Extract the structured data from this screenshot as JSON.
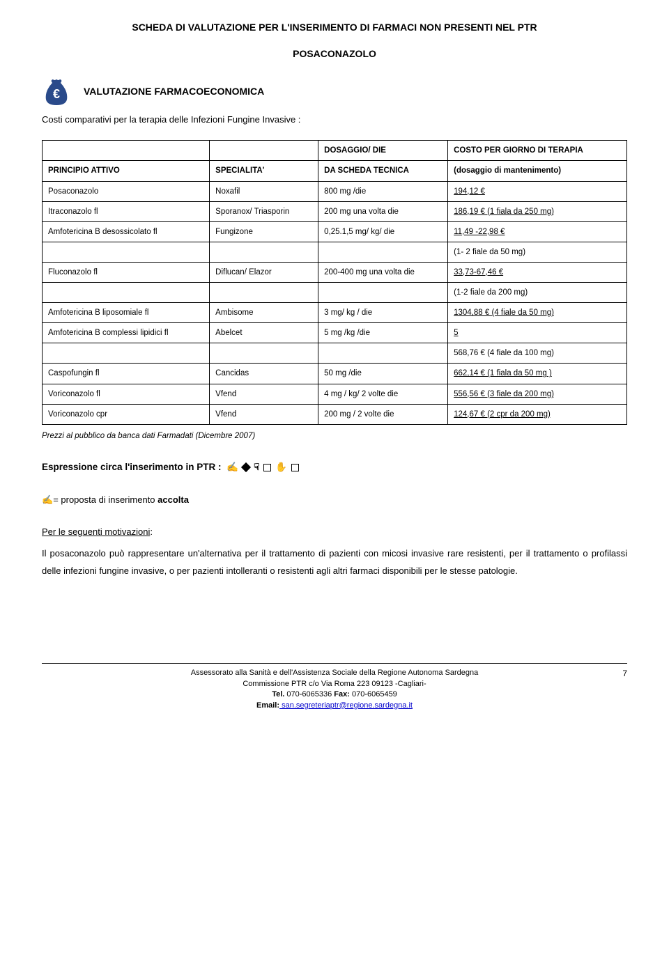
{
  "header": {
    "title": "SCHEDA DI VALUTAZIONE PER L'INSERIMENTO DI FARMACI NON PRESENTI NEL PTR",
    "subtitle": "POSACONAZOLO"
  },
  "section": {
    "title": "VALUTAZIONE FARMACOECONOMICA",
    "intro": "Costi comparativi per la terapia delle Infezioni Fungine Invasive :"
  },
  "table": {
    "headers": {
      "principio": "PRINCIPIO ATTIVO",
      "specialita": "SPECIALITA'",
      "dosaggio_top": "DOSAGGIO/ DIE",
      "dosaggio_sub": "DA SCHEDA TECNICA",
      "costo_top": "COSTO PER GIORNO DI TERAPIA",
      "costo_sub": "(dosaggio di mantenimento)"
    },
    "rows": [
      {
        "p": "Posaconazolo",
        "s": "Noxafil",
        "d": "800 mg /die",
        "c": "194,12 €",
        "u": true
      },
      {
        "p": "Itraconazolo fl",
        "s": "Sporanox/ Triasporin",
        "d": "200 mg una volta die",
        "c": "186,19 €  (1 fiala da 250 mg)",
        "u": true
      },
      {
        "p": "Amfotericina B desossicolato fl",
        "s": "Fungizone",
        "d": "0,25.1,5 mg/ kg/ die",
        "c": "11,49 -22,98 €",
        "u": true,
        "note": "(1- 2 fiale da 50 mg)"
      },
      {
        "p": "Fluconazolo fl",
        "s": "Diflucan/ Elazor",
        "d": "200-400 mg una volta die",
        "c": "33,73-67,46 €",
        "u": true,
        "note": "(1-2 fiale da 200 mg)"
      },
      {
        "p": "Amfotericina B liposomiale fl",
        "s": "Ambisome",
        "d": "3 mg/ kg / die",
        "c": "1304,88 €  (4 fiale da 50 mg)",
        "u": true
      },
      {
        "p": "Amfotericina B complessi lipidici  fl",
        "s": "Abelcet",
        "d": "5 mg /kg /die",
        "c": "5",
        "u": true,
        "note": "568,76 €     (4 fiale da 100 mg)"
      },
      {
        "p": "Caspofungin fl",
        "s": "Cancidas",
        "d": "50 mg /die",
        "c": "662,14 €  (1 fiala da 50 mg )",
        "u": true
      },
      {
        "p": "Voriconazolo fl",
        "s": "Vfend",
        "d": "4 mg / kg/ 2 volte die",
        "c": "556,56 € (3 fiale da 200 mg)",
        "u": true
      },
      {
        "p": "Voriconazolo cpr",
        "s": "Vfend",
        "d": "200 mg / 2 volte die",
        "c": "124,67 € (2 cpr da 200 mg)",
        "u": true
      }
    ],
    "caption": "Prezzi al pubblico da banca dati Farmadati (Dicembre 2007)"
  },
  "expression": {
    "label": "Espressione circa l'inserimento in PTR :"
  },
  "accolta": {
    "text": "= proposta di inserimento ",
    "bold": "accolta"
  },
  "motivazioni": {
    "heading": "Per le seguenti motivazioni:",
    "text": "Il posaconazolo può rappresentare un'alternativa per il trattamento di pazienti con micosi invasive rare resistenti, per il trattamento o profilassi delle infezioni fungine invasive, o per pazienti intolleranti o resistenti agli altri farmaci disponibili per le stesse patologie."
  },
  "footer": {
    "line1": "Assessorato alla Sanità e dell'Assistenza Sociale della Regione Autonoma Sardegna",
    "line2": "Commissione PTR c/o Via Roma 223 09123 -Cagliari-",
    "tel_label": "Tel.",
    "tel": " 070-6065336 ",
    "fax_label": "Fax:",
    "fax": " 070-6065459",
    "email_label": "Email:",
    "email": " san.segreteriaptr@regione.sardegna.it",
    "page": "7"
  }
}
